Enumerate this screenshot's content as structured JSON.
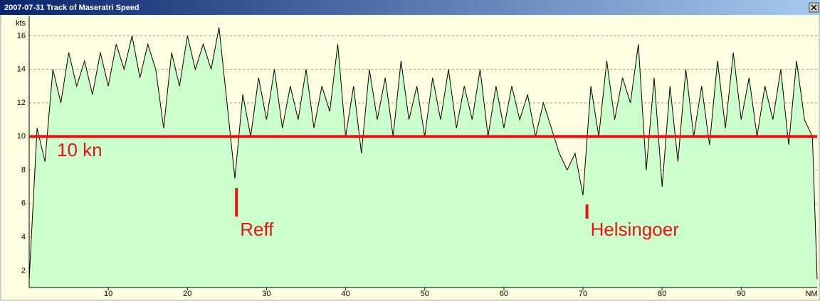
{
  "chart_data": {
    "type": "area",
    "title": "2007-07-31 Track of Maseratri Speed",
    "y_label": "kts",
    "x_label": "NM",
    "x": [
      0,
      1,
      2,
      3,
      4,
      5,
      6,
      7,
      8,
      9,
      10,
      11,
      12,
      13,
      14,
      15,
      16,
      17,
      18,
      19,
      20,
      21,
      22,
      23,
      24,
      25,
      26,
      27,
      28,
      29,
      30,
      31,
      32,
      33,
      34,
      35,
      36,
      37,
      38,
      39,
      40,
      41,
      42,
      43,
      44,
      45,
      46,
      47,
      48,
      49,
      50,
      51,
      52,
      53,
      54,
      55,
      56,
      57,
      58,
      59,
      60,
      61,
      62,
      63,
      64,
      65,
      66,
      67,
      68,
      69,
      70,
      71,
      72,
      73,
      74,
      75,
      76,
      77,
      78,
      79,
      80,
      81,
      82,
      83,
      84,
      85,
      86,
      87,
      88,
      89,
      90,
      91,
      92,
      93,
      94,
      95,
      96,
      97,
      98,
      99,
      99.6
    ],
    "series": [
      {
        "color": "#000000",
        "fill": "#ccffcc",
        "values": [
          1.5,
          10.5,
          8.5,
          14,
          12,
          15,
          13,
          14.5,
          12.5,
          15,
          13,
          15.5,
          14,
          16,
          13.5,
          15.5,
          14,
          10.5,
          15,
          13,
          16,
          14,
          15.5,
          14,
          16.5,
          12,
          7.5,
          12.5,
          10,
          13.5,
          11,
          14,
          10.5,
          13,
          11,
          14,
          10.5,
          13,
          11.5,
          15.5,
          10,
          13,
          9,
          14,
          11,
          13.5,
          10,
          14.5,
          11,
          13,
          10,
          13.5,
          11,
          14,
          10.5,
          13,
          11,
          14,
          10,
          13,
          10.5,
          13,
          11,
          12.5,
          10,
          12,
          10.5,
          9,
          8,
          9,
          6.5,
          13,
          10,
          14.5,
          11,
          13.5,
          12,
          15.5,
          8,
          13.5,
          7,
          13,
          8.5,
          14,
          10,
          13,
          9.5,
          14.5,
          10.5,
          15,
          11,
          13.5,
          10,
          13,
          11,
          14,
          9.5,
          14.5,
          11,
          10,
          1.5
        ]
      }
    ],
    "xlim": [
      0,
      99.6
    ],
    "ylim": [
      1,
      17.2
    ],
    "xticks": [
      10,
      20,
      30,
      40,
      50,
      60,
      70,
      80,
      90
    ],
    "yticks": [
      2,
      4,
      6,
      8,
      10,
      12,
      14,
      16
    ],
    "grid": true,
    "reference_line": {
      "value": 10,
      "label": "10 kn",
      "color": "#ee1111"
    },
    "annotations": [
      {
        "text": "Reff",
        "x": 26.2
      },
      {
        "text": "Helsingoer",
        "x": 70.5
      }
    ]
  }
}
